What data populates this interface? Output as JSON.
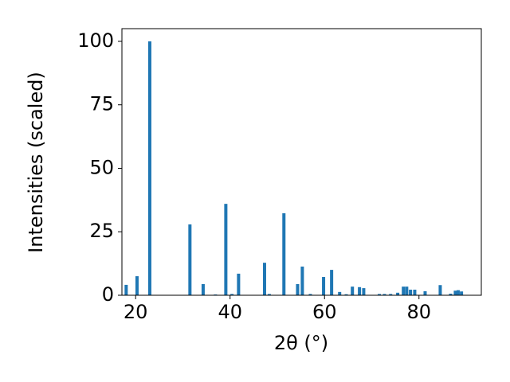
{
  "chart_data": {
    "type": "bar",
    "xlabel": "2θ (°)",
    "ylabel": "Intensities (scaled)",
    "x": [
      18.0,
      20.3,
      23.0,
      31.5,
      34.3,
      36.9,
      39.1,
      40.4,
      41.8,
      47.3,
      48.3,
      51.4,
      54.3,
      55.3,
      57.0,
      59.8,
      61.5,
      63.2,
      64.6,
      65.9,
      67.4,
      68.3,
      71.6,
      72.7,
      74.0,
      75.5,
      76.7,
      77.4,
      78.2,
      79.1,
      81.3,
      84.5,
      86.7,
      87.7,
      88.3,
      89.0
    ],
    "values": [
      4.1,
      7.5,
      100,
      27.9,
      4.4,
      0.3,
      36,
      0.5,
      8.5,
      12.8,
      0.5,
      32.3,
      4.4,
      11.3,
      0.5,
      7.2,
      10.0,
      1.3,
      0.4,
      3.4,
      3.2,
      2.8,
      0.5,
      0.5,
      0.5,
      1.0,
      3.4,
      3.4,
      2.2,
      2.2,
      1.6,
      4.0,
      0.6,
      1.8,
      2.0,
      1.5
    ],
    "color": "#1f77b4",
    "xlim": [
      17.1,
      93.2
    ],
    "ylim": [
      0,
      105
    ],
    "xticks": [
      20,
      40,
      60,
      80
    ],
    "yticks": [
      0,
      25,
      50,
      75,
      100
    ]
  }
}
